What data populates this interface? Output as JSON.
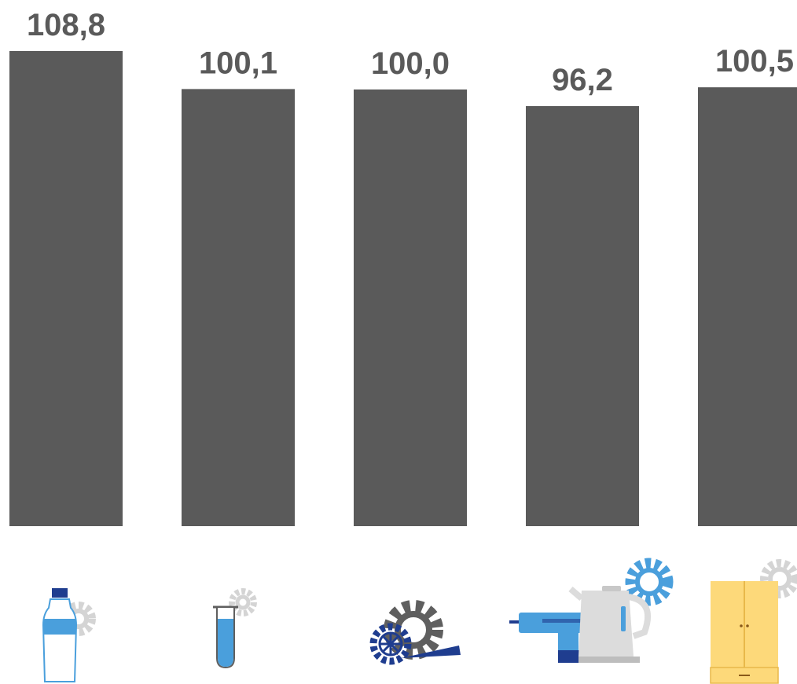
{
  "chart_data": {
    "type": "bar",
    "categories": [
      "",
      "",
      "",
      "",
      ""
    ],
    "category_icons": [
      "bottle-gear-icon",
      "test-tube-gear-icon",
      "gears-horn-icon",
      "drill-kettle-gear-icon",
      "wardrobe-gear-icon"
    ],
    "values": [
      108.8,
      100.1,
      100.0,
      96.2,
      100.5
    ],
    "value_labels": [
      "108,8",
      "100,1",
      "100,0",
      "96,2",
      "100,5"
    ],
    "ylim": [
      0,
      108.8
    ],
    "bar_color": "#5a5a5a",
    "grid": false,
    "legend": "none",
    "title": "",
    "xlabel": "",
    "ylabel": ""
  },
  "colors": {
    "icon_gear_gray": "#d4d4d4",
    "icon_blue": "#4a9fdc",
    "icon_navy": "#1f3d8f",
    "icon_dark_gray": "#5f5f5f",
    "icon_yellow": "#fdd97a"
  }
}
